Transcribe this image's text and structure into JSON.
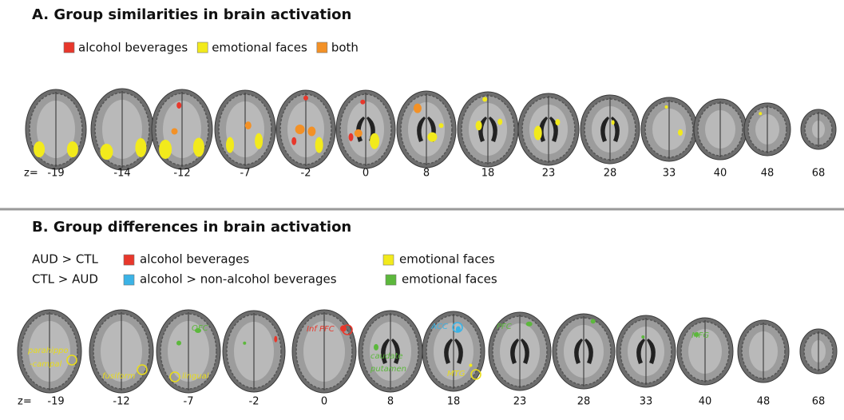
{
  "panel_a": {
    "title": "A. Group similarities in brain activation",
    "legend": [
      {
        "label": "alcohol beverages",
        "color": "#e8372b"
      },
      {
        "label": "emotional faces",
        "color": "#f2ea1c"
      },
      {
        "label": "both",
        "color": "#f39126"
      }
    ],
    "z_prefix": "z=",
    "z": [
      -19,
      -14,
      -12,
      -7,
      -2,
      0,
      8,
      18,
      23,
      28,
      33,
      40,
      48,
      68
    ]
  },
  "panel_b": {
    "title": "B. Group differences in brain activation",
    "legend_rows": [
      {
        "group": "AUD > CTL",
        "items": [
          {
            "label": "alcohol beverages",
            "color": "#e8372b"
          },
          {
            "label": "emotional faces",
            "color": "#f2ea1c"
          }
        ]
      },
      {
        "group": "CTL > AUD",
        "items": [
          {
            "label": "alcohol > non-alcohol beverages",
            "color": "#3bb3e6"
          },
          {
            "label": "emotional faces",
            "color": "#5cb83c"
          }
        ]
      }
    ],
    "z_prefix": "z=",
    "z": [
      -19,
      -12,
      -7,
      -2,
      0,
      8,
      18,
      23,
      28,
      33,
      40,
      48,
      68
    ],
    "annotations": [
      {
        "label": "parahippo",
        "color": "#e8dc1c"
      },
      {
        "label": "-campal",
        "color": "#e8dc1c"
      },
      {
        "label": "fusiform",
        "color": "#e8dc1c"
      },
      {
        "label": "lingual",
        "color": "#e8dc1c"
      },
      {
        "label": "OFC",
        "color": "#5cb83c"
      },
      {
        "label": "Inf PFC",
        "color": "#e8372b"
      },
      {
        "label": "caudate",
        "color": "#5cb83c"
      },
      {
        "label": "putamen",
        "color": "#5cb83c"
      },
      {
        "label": "ACC",
        "color": "#3bb3e6"
      },
      {
        "label": "MTG",
        "color": "#e8dc1c"
      },
      {
        "label": "PFC",
        "color": "#5cb83c"
      },
      {
        "label": "MFG",
        "color": "#5cb83c"
      }
    ]
  }
}
